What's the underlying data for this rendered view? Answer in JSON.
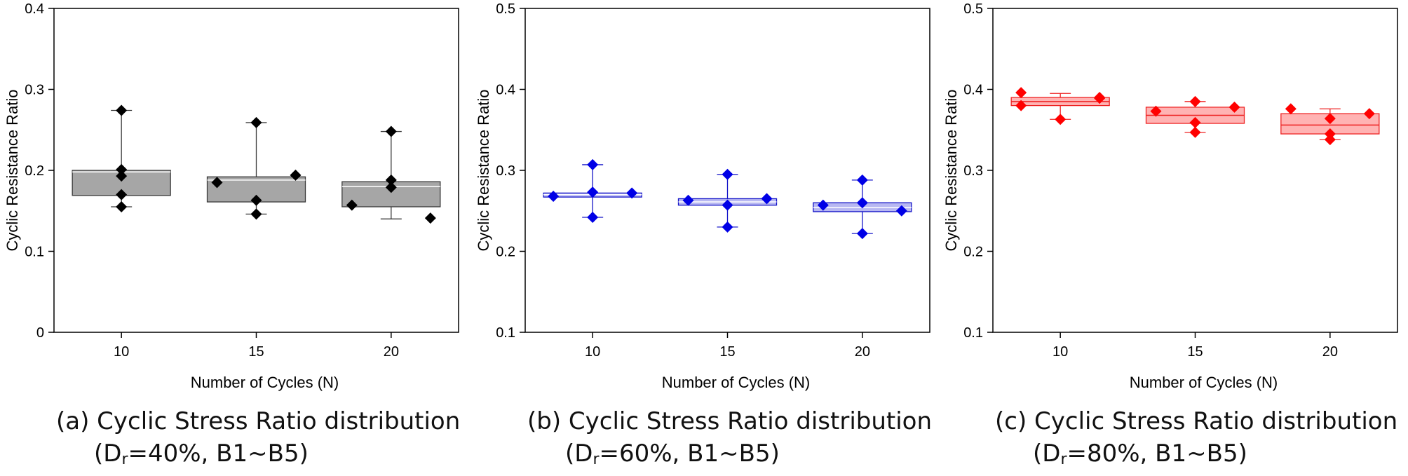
{
  "chart_data": [
    {
      "type": "box",
      "panel_id": "a",
      "caption_line1": "(a) Cyclic Stress Ratio distribution",
      "caption_line2_prefix": "(D",
      "caption_line2_sub": "r",
      "caption_line2_suffix": "=40%,  B1~B5)",
      "xlabel": "Number of Cycles (N)",
      "ylabel": "Cyclic Resistance Ratio",
      "categories": [
        "10",
        "15",
        "20"
      ],
      "ylim": [
        0,
        0.4
      ],
      "yticks": [
        "0",
        "0.1",
        "0.2",
        "0.3",
        "0.4"
      ],
      "ytick_values": [
        0,
        0.1,
        0.2,
        0.3,
        0.4
      ],
      "colors": {
        "fill": "#a6a6a6",
        "stroke": "#3a3a3a",
        "point": "#000000",
        "median": "#ffffff"
      },
      "boxes": [
        {
          "q1": 0.169,
          "median": 0.198,
          "q3": 0.2,
          "whisker_low": 0.155,
          "whisker_high": 0.274
        },
        {
          "q1": 0.161,
          "median": 0.188,
          "q3": 0.192,
          "whisker_low": 0.146,
          "whisker_high": 0.259
        },
        {
          "q1": 0.155,
          "median": 0.18,
          "q3": 0.186,
          "whisker_low": 0.14,
          "whisker_high": 0.248
        }
      ],
      "points": [
        [
          {
            "dx": 0.0,
            "y": 0.274
          },
          {
            "dx": 0.0,
            "y": 0.201
          },
          {
            "dx": 0.0,
            "y": 0.193
          },
          {
            "dx": 0.0,
            "y": 0.17
          },
          {
            "dx": 0.0,
            "y": 0.155
          }
        ],
        [
          {
            "dx": -0.5,
            "y": 0.185
          },
          {
            "dx": 0.0,
            "y": 0.259
          },
          {
            "dx": 0.0,
            "y": 0.163
          },
          {
            "dx": 0.0,
            "y": 0.146
          },
          {
            "dx": 0.5,
            "y": 0.194
          }
        ],
        [
          {
            "dx": -0.5,
            "y": 0.157
          },
          {
            "dx": 0.0,
            "y": 0.248
          },
          {
            "dx": 0.0,
            "y": 0.188
          },
          {
            "dx": 0.0,
            "y": 0.179
          },
          {
            "dx": 0.5,
            "y": 0.141
          }
        ]
      ]
    },
    {
      "type": "box",
      "panel_id": "b",
      "caption_line1": "(b) Cyclic Stress Ratio distribution",
      "caption_line2_prefix": "(D",
      "caption_line2_sub": "r",
      "caption_line2_suffix": "=60%,  B1~B5)",
      "xlabel": "Number of Cycles (N)",
      "ylabel": "Cyclic Resistance Ratio",
      "categories": [
        "10",
        "15",
        "20"
      ],
      "ylim": [
        0.1,
        0.5
      ],
      "yticks": [
        "0.1",
        "0.2",
        "0.3",
        "0.4",
        "0.5"
      ],
      "ytick_values": [
        0.1,
        0.2,
        0.3,
        0.4,
        0.5
      ],
      "colors": {
        "fill": "#b8b8f2",
        "stroke": "#1414c8",
        "point": "#0000e6",
        "median": "#ffffff"
      },
      "boxes": [
        {
          "q1": 0.267,
          "median": 0.27,
          "q3": 0.272,
          "whisker_low": 0.242,
          "whisker_high": 0.307
        },
        {
          "q1": 0.257,
          "median": 0.261,
          "q3": 0.265,
          "whisker_low": 0.23,
          "whisker_high": 0.295
        },
        {
          "q1": 0.249,
          "median": 0.254,
          "q3": 0.26,
          "whisker_low": 0.222,
          "whisker_high": 0.288
        }
      ],
      "points": [
        [
          {
            "dx": -0.5,
            "y": 0.268
          },
          {
            "dx": 0.0,
            "y": 0.307
          },
          {
            "dx": 0.0,
            "y": 0.273
          },
          {
            "dx": 0.0,
            "y": 0.242
          },
          {
            "dx": 0.5,
            "y": 0.272
          }
        ],
        [
          {
            "dx": -0.5,
            "y": 0.263
          },
          {
            "dx": 0.0,
            "y": 0.295
          },
          {
            "dx": 0.0,
            "y": 0.257
          },
          {
            "dx": 0.0,
            "y": 0.23
          },
          {
            "dx": 0.5,
            "y": 0.265
          }
        ],
        [
          {
            "dx": -0.5,
            "y": 0.257
          },
          {
            "dx": 0.0,
            "y": 0.288
          },
          {
            "dx": 0.0,
            "y": 0.26
          },
          {
            "dx": 0.0,
            "y": 0.222
          },
          {
            "dx": 0.5,
            "y": 0.25
          }
        ]
      ]
    },
    {
      "type": "box",
      "panel_id": "c",
      "caption_line1": "(c) Cyclic Stress Ratio distribution",
      "caption_line2_prefix": "(D",
      "caption_line2_sub": "r",
      "caption_line2_suffix": "=80%,  B1~B5)",
      "xlabel": "Number of Cycles (N)",
      "ylabel": "Cyclic Resistance Ratio",
      "categories": [
        "10",
        "15",
        "20"
      ],
      "ylim": [
        0.1,
        0.5
      ],
      "yticks": [
        "0.1",
        "0.2",
        "0.3",
        "0.4",
        "0.5"
      ],
      "ytick_values": [
        0.1,
        0.2,
        0.3,
        0.4,
        0.5
      ],
      "colors": {
        "fill": "#ffb3b3",
        "stroke": "#ee2222",
        "point": "#ff0000",
        "median": "#ee2222"
      },
      "boxes": [
        {
          "q1": 0.38,
          "median": 0.385,
          "q3": 0.39,
          "whisker_low": 0.363,
          "whisker_high": 0.395
        },
        {
          "q1": 0.358,
          "median": 0.368,
          "q3": 0.378,
          "whisker_low": 0.347,
          "whisker_high": 0.385
        },
        {
          "q1": 0.345,
          "median": 0.356,
          "q3": 0.37,
          "whisker_low": 0.338,
          "whisker_high": 0.376
        }
      ],
      "points": [
        [
          {
            "dx": -0.5,
            "y": 0.396
          },
          {
            "dx": -0.5,
            "y": 0.38
          },
          {
            "dx": 0.0,
            "y": 0.363
          },
          {
            "dx": 0.5,
            "y": 0.389
          },
          {
            "dx": 0.5,
            "y": 0.39
          }
        ],
        [
          {
            "dx": -0.5,
            "y": 0.373
          },
          {
            "dx": 0.0,
            "y": 0.385
          },
          {
            "dx": 0.0,
            "y": 0.359
          },
          {
            "dx": 0.0,
            "y": 0.347
          },
          {
            "dx": 0.5,
            "y": 0.378
          }
        ],
        [
          {
            "dx": -0.5,
            "y": 0.376
          },
          {
            "dx": 0.0,
            "y": 0.364
          },
          {
            "dx": 0.0,
            "y": 0.345
          },
          {
            "dx": 0.0,
            "y": 0.338
          },
          {
            "dx": 0.5,
            "y": 0.37
          }
        ]
      ]
    }
  ]
}
